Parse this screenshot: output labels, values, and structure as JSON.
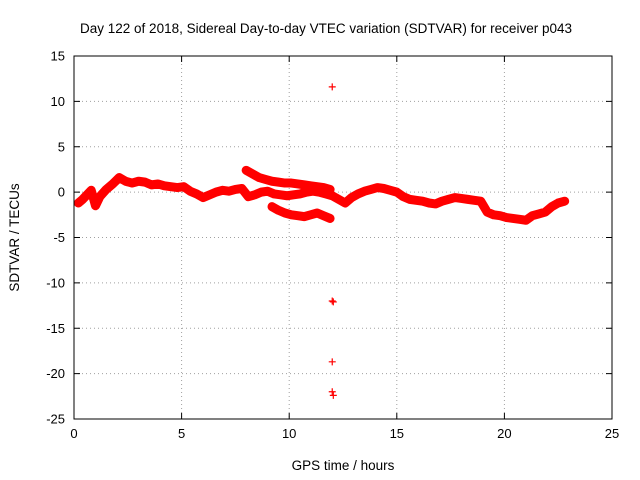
{
  "chart_data": {
    "type": "scatter",
    "title": "Day 122 of 2018, Sidereal Day-to-day VTEC variation (SDTVAR) for receiver p043",
    "xlabel": "GPS time / hours",
    "ylabel": "SDTVAR / TECUs",
    "xlim": [
      0,
      25
    ],
    "ylim": [
      -25,
      15
    ],
    "xticks": [
      0,
      5,
      10,
      15,
      20,
      25
    ],
    "yticks": [
      -25,
      -20,
      -15,
      -10,
      -5,
      0,
      5,
      10,
      15
    ],
    "grid": true,
    "marker": "+",
    "color": "#ff0000",
    "series": [
      {
        "name": "main trace",
        "x": [
          0.2,
          0.4,
          0.6,
          0.8,
          1.0,
          1.2,
          1.5,
          1.8,
          2.1,
          2.4,
          2.7,
          3.0,
          3.3,
          3.6,
          3.9,
          4.2,
          4.5,
          4.8,
          5.1,
          5.4,
          5.7,
          6.0,
          6.3,
          6.6,
          6.9,
          7.2,
          7.5,
          7.8,
          8.1,
          8.4,
          8.7,
          9.0,
          9.3,
          9.6,
          9.9,
          10.2,
          10.5,
          10.8,
          11.1,
          11.4,
          11.7,
          12.0,
          12.3,
          12.6,
          12.9,
          13.2,
          13.5,
          13.8,
          14.1,
          14.4,
          14.7,
          15.0,
          15.3,
          15.6,
          15.9,
          16.2,
          16.5,
          16.8,
          17.1,
          17.4,
          17.7,
          18.0,
          18.3,
          18.6,
          18.9,
          19.2,
          19.5,
          19.8,
          20.1,
          20.4,
          20.7,
          21.0,
          21.3,
          21.6,
          21.9,
          22.2,
          22.5,
          22.8
        ],
        "y": [
          -1.2,
          -0.8,
          -0.3,
          0.2,
          -1.5,
          -0.5,
          0.3,
          0.9,
          1.6,
          1.2,
          1.0,
          1.2,
          1.1,
          0.8,
          0.9,
          0.7,
          0.6,
          0.5,
          0.6,
          0.1,
          -0.2,
          -0.6,
          -0.3,
          0.0,
          0.2,
          0.1,
          0.3,
          0.4,
          -0.5,
          -0.3,
          0.0,
          0.1,
          -0.2,
          -0.3,
          -0.4,
          -0.3,
          -0.2,
          0.0,
          0.1,
          0.0,
          -0.2,
          -0.4,
          -0.8,
          -1.2,
          -0.6,
          -0.2,
          0.1,
          0.3,
          0.5,
          0.4,
          0.2,
          0.0,
          -0.5,
          -0.8,
          -0.9,
          -1.0,
          -1.2,
          -1.3,
          -1.0,
          -0.8,
          -0.6,
          -0.7,
          -0.8,
          -0.9,
          -1.0,
          -2.2,
          -2.5,
          -2.6,
          -2.8,
          -2.9,
          -3.0,
          -3.1,
          -2.6,
          -2.4,
          -2.2,
          -1.6,
          -1.2,
          -1.0
        ]
      },
      {
        "name": "upper arc",
        "x": [
          8.0,
          8.3,
          8.6,
          8.9,
          9.2,
          9.5,
          9.8,
          10.1,
          10.4,
          10.7,
          11.0,
          11.3,
          11.6,
          11.9
        ],
        "y": [
          2.4,
          2.0,
          1.6,
          1.4,
          1.2,
          1.1,
          1.0,
          1.0,
          0.9,
          0.8,
          0.7,
          0.6,
          0.5,
          0.3
        ]
      },
      {
        "name": "lower arc",
        "x": [
          9.2,
          9.5,
          9.8,
          10.1,
          10.4,
          10.7,
          11.0,
          11.3,
          11.6,
          11.9
        ],
        "y": [
          -1.6,
          -2.0,
          -2.3,
          -2.5,
          -2.6,
          -2.7,
          -2.5,
          -2.3,
          -2.6,
          -2.9
        ]
      },
      {
        "name": "outliers",
        "x": [
          12.0,
          12.0,
          12.05,
          12.0,
          12.0,
          12.05
        ],
        "y": [
          11.6,
          -12.0,
          -12.1,
          -18.7,
          -22.0,
          -22.4
        ]
      }
    ]
  }
}
